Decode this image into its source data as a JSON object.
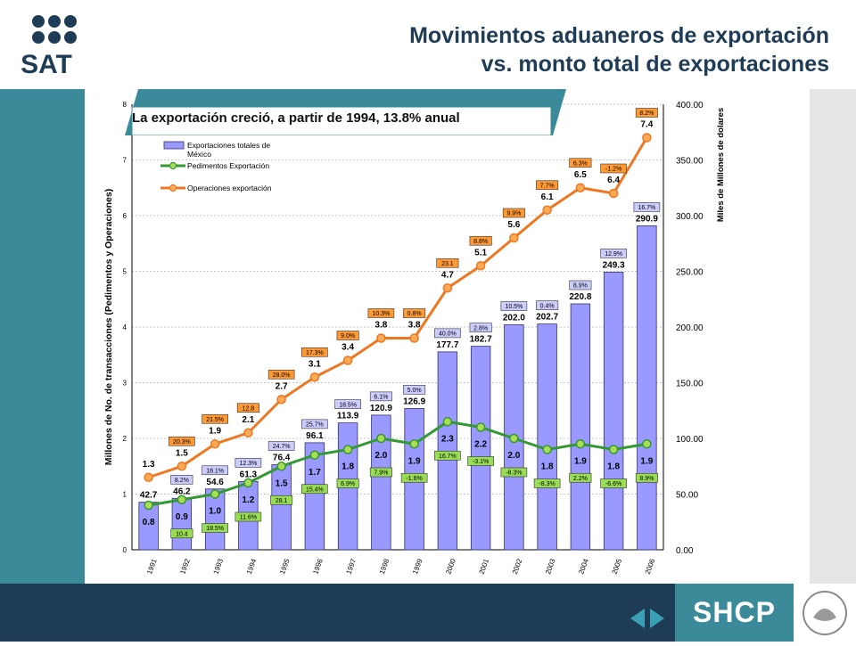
{
  "header": {
    "title_line1": "Movimientos aduaneros de exportación",
    "title_line2": "vs. monto total de exportaciones",
    "logo_text": "SAT"
  },
  "footer": {
    "brand": "SHCP"
  },
  "banner": {
    "text": "La exportación creció, a partir de 1994, 13.8% anual"
  },
  "colors": {
    "bar": "#9999ff",
    "green": "#339933",
    "orange": "#ee7722",
    "teal": "#3a8a9a",
    "navy": "#1f3c56"
  },
  "chart_data": {
    "type": "bar",
    "categories": [
      "1991",
      "1992",
      "1993",
      "1994",
      "1995",
      "1996",
      "1997",
      "1998",
      "1999",
      "2000",
      "2001",
      "2002",
      "2003",
      "2004",
      "2005",
      "2006"
    ],
    "ylabel": "Millones de No. de transacciones (Pedimentos y Operaciones)",
    "y2label": "Miles de Millones de dolares",
    "ylim": [
      0,
      8
    ],
    "y2lim": [
      0,
      400
    ],
    "y_ticks": [
      "0",
      "1",
      "2",
      "3",
      "4",
      "5",
      "6",
      "7",
      "8"
    ],
    "y2_ticks": [
      "0.00",
      "50.00",
      "100.00",
      "150.00",
      "200.00",
      "250.00",
      "300.00",
      "350.00",
      "400.00"
    ],
    "legend": {
      "placement": "top-left",
      "bars_line1": "Exportaciones totales de",
      "bars_line2": "México",
      "green": "Pedimentos Exportación",
      "orange": "Operaciones exportación"
    },
    "series": [
      {
        "name": "Exportaciones totales de México",
        "type": "bar",
        "axis": "right",
        "values": [
          42.7,
          46.2,
          54.6,
          61.3,
          76.4,
          96.1,
          113.9,
          120.9,
          126.9,
          177.7,
          182.7,
          202.0,
          202.7,
          220.8,
          249.3,
          290.9
        ],
        "labels": [
          "42.7",
          "46.2",
          "54.6",
          "61.3",
          "76.4",
          "96.1",
          "113.9",
          "120.9",
          "126.9",
          "177.7",
          "182.7",
          "202.0",
          "202.7",
          "220.8",
          "249.3",
          "290.9"
        ],
        "growth": [
          "",
          "8.2%",
          "18.1%",
          "12.3%",
          "24.7%",
          "25.7%",
          "18.5%",
          "6.1%",
          "5.0%",
          "40.0%",
          "2.8%",
          "10.5%",
          "0.4%",
          "8.9%",
          "12.9%",
          "16.7%"
        ]
      },
      {
        "name": "Pedimentos Exportación",
        "type": "line",
        "axis": "left",
        "values": [
          0.8,
          0.9,
          1.0,
          1.2,
          1.5,
          1.7,
          1.8,
          2.0,
          1.9,
          2.3,
          2.2,
          2.0,
          1.8,
          1.9,
          1.8,
          1.9
        ],
        "labels": [
          "0.8",
          "0.9",
          "1.0",
          "1.2",
          "1.5",
          "1.7",
          "1.8",
          "2.0",
          "1.9",
          "2.3",
          "2.2",
          "2.0",
          "1.8",
          "1.9",
          "1.8",
          "1.9"
        ],
        "growth": [
          "",
          "10.4",
          "18.5%",
          "11.6%",
          "28.1",
          "15.4%",
          "6.9%",
          "7.9%",
          "-1.6%",
          "16.7%",
          "-3.1%",
          "-8.3%",
          "-8.3%",
          "2.2%",
          "-6.6%",
          "8.9%"
        ]
      },
      {
        "name": "Operaciones exportación",
        "type": "line",
        "axis": "left",
        "values": [
          1.3,
          1.5,
          1.9,
          2.1,
          2.7,
          3.1,
          3.4,
          3.8,
          3.8,
          4.7,
          5.1,
          5.6,
          6.1,
          6.5,
          6.4,
          7.4
        ],
        "labels": [
          "1.3",
          "1.5",
          "1.9",
          "2.1",
          "2.7",
          "3.1",
          "3.4",
          "3.8",
          "3.8",
          "4.7",
          "5.1",
          "5.6",
          "6.1",
          "6.5",
          "6.4",
          "7.4"
        ],
        "growth": [
          "",
          "20.3%",
          "21.5%",
          "12.8",
          "28.0%",
          "17.3%",
          "9.0%",
          "10.3%",
          "0.8%",
          "23.1",
          "8.8%",
          "9.9%",
          "7.7%",
          "6.3%",
          "-1.2%",
          "8.2%"
        ]
      }
    ]
  }
}
